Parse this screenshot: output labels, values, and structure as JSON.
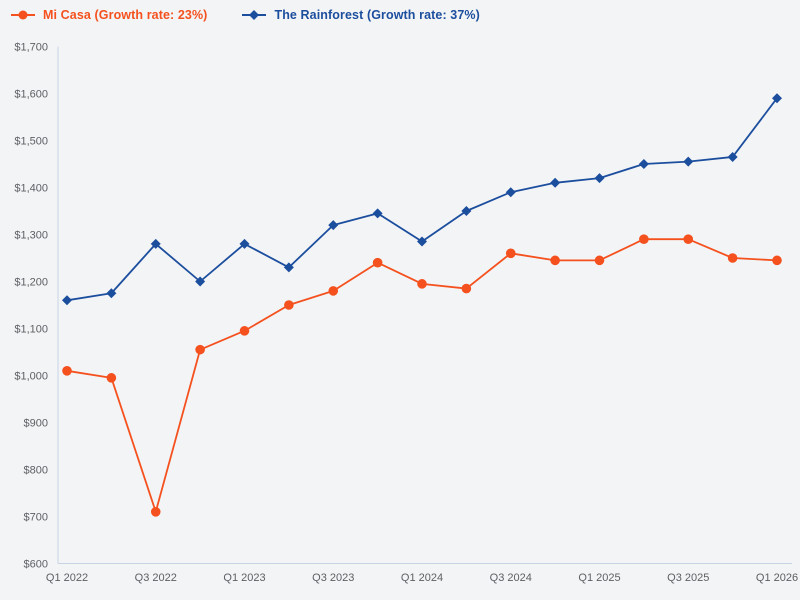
{
  "legend": {
    "items": [
      {
        "label": "Mi Casa (Growth rate: 23%)",
        "color": "#f4511e",
        "marker": "circle"
      },
      {
        "label": "The Rainforest (Growth rate: 37%)",
        "color": "#1c4e9e",
        "marker": "diamond"
      }
    ]
  },
  "chart_data": {
    "type": "line",
    "title": "",
    "xlabel": "",
    "ylabel": "",
    "x": [
      "Q1 2022",
      "Q2 2022",
      "Q3 2022",
      "Q4 2022",
      "Q1 2023",
      "Q2 2023",
      "Q3 2023",
      "Q4 2023",
      "Q1 2024",
      "Q2 2024",
      "Q3 2024",
      "Q4 2024",
      "Q1 2025",
      "Q2 2025",
      "Q3 2025",
      "Q4 2025",
      "Q1 2026"
    ],
    "series": [
      {
        "name": "Mi Casa",
        "growth_rate": "23%",
        "color": "#f4511e",
        "marker": "circle",
        "values": [
          1010,
          995,
          710,
          1055,
          1095,
          1150,
          1180,
          1240,
          1195,
          1185,
          1260,
          1245,
          1245,
          1290,
          1290,
          1250,
          1245
        ]
      },
      {
        "name": "The Rainforest",
        "growth_rate": "37%",
        "color": "#1c4e9e",
        "marker": "diamond",
        "values": [
          1160,
          1175,
          1280,
          1200,
          1280,
          1230,
          1320,
          1345,
          1285,
          1350,
          1390,
          1410,
          1420,
          1450,
          1455,
          1465,
          1590
        ]
      }
    ],
    "ylim": [
      600,
      1700
    ],
    "ytick_step": 100,
    "ytick_labels": [
      "$600",
      "$700",
      "$800",
      "$900",
      "$1,000",
      "$1,100",
      "$1,200",
      "$1,300",
      "$1,400",
      "$1,500",
      "$1,600",
      "$1,700"
    ],
    "xtick_every": 2,
    "xtick_labels": [
      "Q1 2022",
      "Q3 2022",
      "Q1 2023",
      "Q3 2023",
      "Q1 2024",
      "Q3 2024",
      "Q1 2025",
      "Q3 2025",
      "Q1 2026"
    ],
    "grid": false,
    "legend_position": "top-left",
    "background": "#f3f4f6",
    "axis_color": "#c8d3e4",
    "tick_color": "#5c5f63"
  }
}
